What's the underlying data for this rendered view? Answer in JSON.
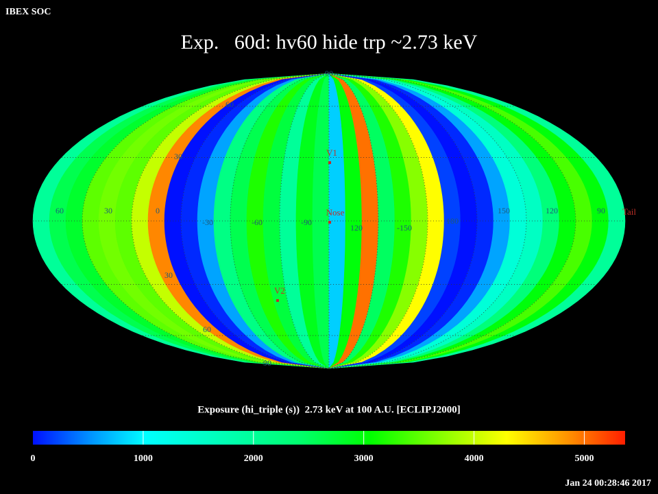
{
  "header": {
    "org": "IBEX SOC",
    "title": "Exp.   60d: hv60 hide trp ~2.73 keV"
  },
  "map": {
    "exposure_strips": [
      2000,
      2600,
      2800,
      3500,
      3600,
      3500,
      4000,
      4900,
      0,
      100,
      600,
      2200,
      2600,
      3200,
      2700,
      2000,
      2900,
      2600,
      800,
      3000,
      5000,
      2500,
      3200,
      3700,
      4300,
      200,
      0,
      100,
      600,
      1400,
      1600,
      2300,
      3000,
      3400,
      3000,
      2000
    ],
    "lon_labels": [
      "60",
      "30",
      "0",
      "-30",
      "-60",
      "-90",
      "120",
      "-150",
      "180",
      "150",
      "120",
      "90"
    ],
    "lat_labels": [
      "90",
      "60",
      "30",
      "30",
      "60",
      "90"
    ],
    "markers": [
      "V1",
      "Nose",
      "V2",
      "Tail"
    ]
  },
  "colorbar": {
    "caption": "Exposure (hi_triple (s))  2.73 keV at 100 A.U. [ECLIPJ2000]",
    "lim": [
      0,
      5370
    ],
    "ticks": [
      0,
      1000,
      2000,
      3000,
      4000,
      5000
    ]
  },
  "footer": {
    "timestamp": "Jan 24 00:28:46 2017"
  }
}
